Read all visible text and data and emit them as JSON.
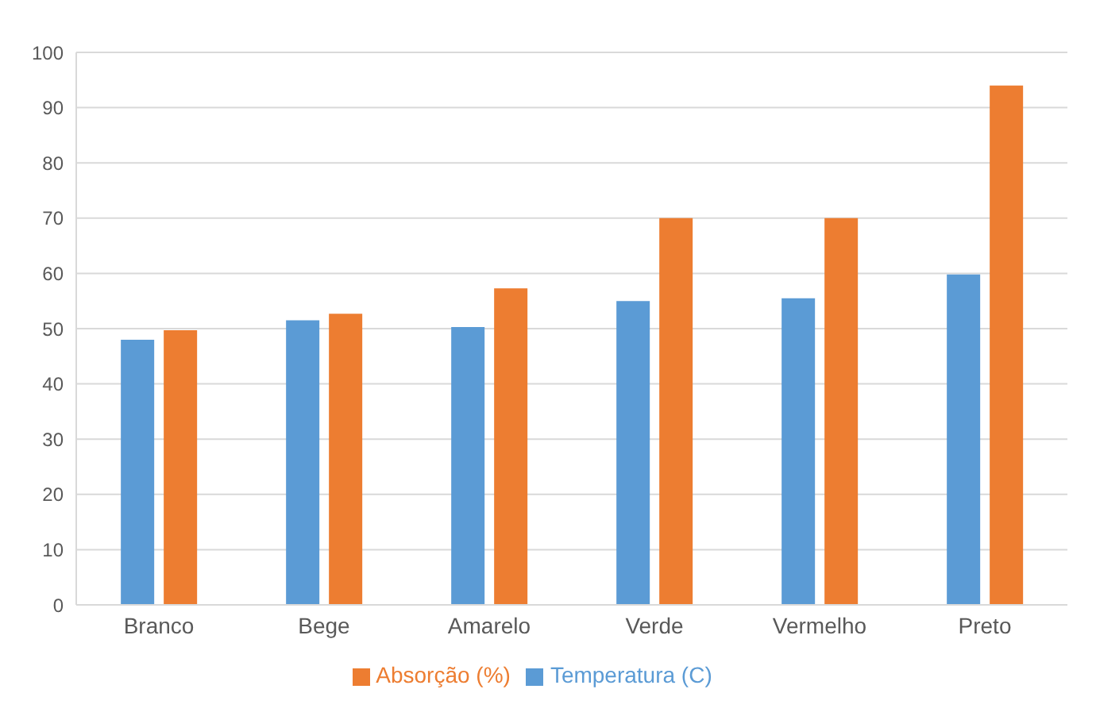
{
  "chart_data": {
    "type": "bar",
    "categories": [
      "Branco",
      "Bege",
      "Amarelo",
      "Verde",
      "Vermelho",
      "Preto"
    ],
    "series": [
      {
        "name": "Temperatura (C)",
        "color": "#5b9bd5",
        "values": [
          48,
          51.5,
          50.3,
          55,
          55.5,
          59.8
        ]
      },
      {
        "name": "Absorção (%)",
        "color": "#ed7d31",
        "values": [
          49.7,
          52.7,
          57.3,
          70,
          70,
          94
        ]
      }
    ],
    "ylim": [
      0,
      100
    ],
    "yticks": [
      0,
      10,
      20,
      30,
      40,
      50,
      60,
      70,
      80,
      90,
      100
    ],
    "grid": "y",
    "legend": "bottom"
  }
}
